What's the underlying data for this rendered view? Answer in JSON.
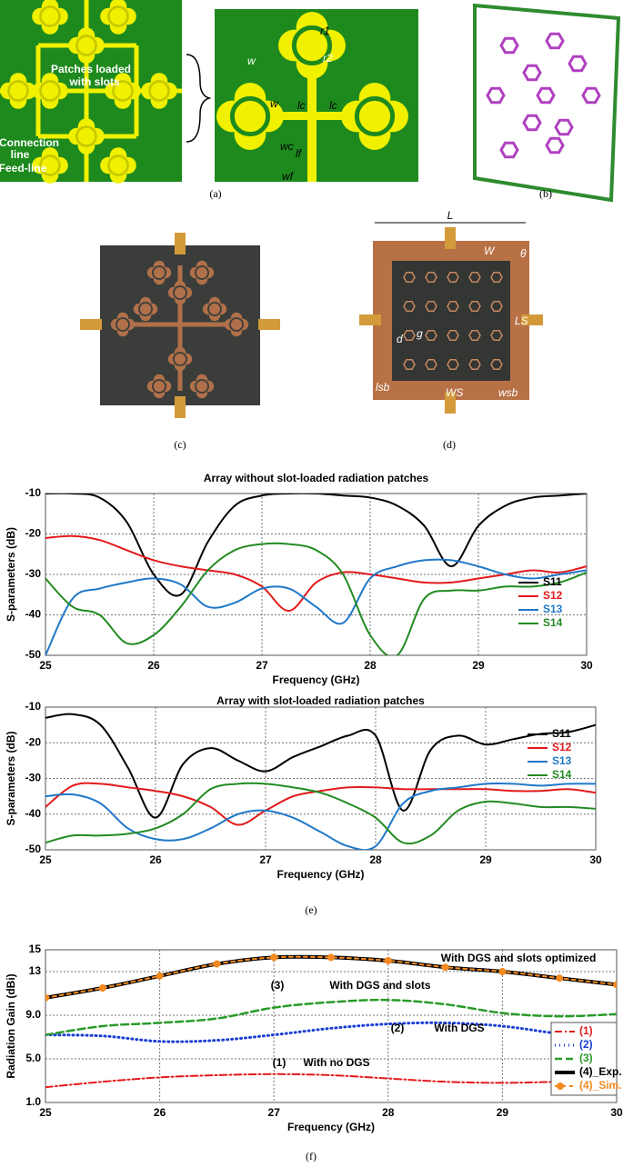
{
  "panel_labels": [
    "(a)",
    "(b)",
    "(c)",
    "(d)",
    "(e)",
    "(f)"
  ],
  "panel_a": {
    "patches": "Patches loaded",
    "slots": "with slots",
    "connection": "Connection",
    "line": "line",
    "feed": "Feed-line",
    "symbols": [
      "w",
      "w",
      "lc",
      "lc",
      "wc",
      "lf",
      "wf",
      "r1",
      "r2"
    ]
  },
  "panel_d": {
    "symbols": [
      "L",
      "W",
      "θ",
      "LS",
      "WS",
      "wsb",
      "lsb",
      "g",
      "d"
    ]
  },
  "chart_data": [
    {
      "type": "line",
      "title": "Array without slot-loaded radiation patches",
      "x_label": "Frequency (GHz)",
      "y_label": "S-parameters (dB)",
      "x": [
        25,
        25.25,
        25.5,
        25.75,
        26,
        26.25,
        26.5,
        26.75,
        27,
        27.25,
        27.5,
        27.75,
        28,
        28.25,
        28.5,
        28.75,
        29,
        29.25,
        29.5,
        29.75,
        30
      ],
      "xlim": [
        25,
        30
      ],
      "xticks": [
        25,
        26,
        27,
        28,
        29,
        30
      ],
      "ylim": [
        -50,
        -10
      ],
      "yticks": [
        -50,
        -40,
        -30,
        -20,
        -10
      ],
      "grid": true,
      "legend": "lower right",
      "series": [
        {
          "name": "S11",
          "color": "#000000",
          "style": "solid",
          "values": [
            -10,
            -10,
            -11,
            -17,
            -30,
            -35,
            -22,
            -13,
            -10.5,
            -10,
            -10,
            -10.5,
            -11,
            -13,
            -18,
            -28,
            -18,
            -13,
            -11,
            -10.5,
            -10
          ]
        },
        {
          "name": "S12",
          "color": "#e31a1c",
          "style": "solid",
          "values": [
            -21,
            -20.5,
            -21.5,
            -24,
            -26.5,
            -28,
            -29,
            -30,
            -33,
            -39,
            -32,
            -29.5,
            -30,
            -31,
            -32,
            -32,
            -31,
            -30,
            -29,
            -29.5,
            -28
          ]
        },
        {
          "name": "S13",
          "color": "#1f78c8",
          "style": "solid",
          "values": [
            -50,
            -36,
            -33.5,
            -32,
            -31,
            -32.5,
            -38,
            -37,
            -33.5,
            -33.5,
            -38,
            -42,
            -31,
            -28,
            -26.5,
            -26.5,
            -28,
            -30,
            -31,
            -30,
            -29
          ]
        },
        {
          "name": "S14",
          "color": "#238b23",
          "style": "solid",
          "values": [
            -31,
            -38,
            -40,
            -47,
            -45,
            -38,
            -29,
            -24,
            -22.5,
            -22.5,
            -24,
            -30,
            -45,
            -50,
            -36,
            -34,
            -34,
            -33,
            -33,
            -32,
            -29.5
          ]
        }
      ]
    },
    {
      "type": "line",
      "title": "Array with slot-loaded radiation patches",
      "x_label": "Frequency (GHz)",
      "y_label": "S-parameters (dB)",
      "x": [
        25,
        25.25,
        25.5,
        25.75,
        26,
        26.25,
        26.5,
        26.75,
        27,
        27.25,
        27.5,
        27.75,
        28,
        28.25,
        28.5,
        28.75,
        29,
        29.25,
        29.5,
        29.75,
        30
      ],
      "xlim": [
        25,
        30
      ],
      "xticks": [
        25,
        26,
        27,
        28,
        29,
        30
      ],
      "ylim": [
        -50,
        -10
      ],
      "yticks": [
        -50,
        -40,
        -30,
        -20,
        -10
      ],
      "grid": true,
      "legend": "upper right",
      "series": [
        {
          "name": "S11",
          "color": "#000000",
          "style": "solid",
          "values": [
            -13,
            -12,
            -15,
            -27,
            -41,
            -26,
            -21.5,
            -25,
            -28,
            -24,
            -21,
            -18,
            -18,
            -39,
            -22,
            -18,
            -20.5,
            -19,
            -17.5,
            -17,
            -15
          ]
        },
        {
          "name": "S12",
          "color": "#e31a1c",
          "style": "solid",
          "values": [
            -38,
            -32,
            -31.5,
            -32.5,
            -33.5,
            -35,
            -38,
            -43,
            -39,
            -35,
            -33.5,
            -32.5,
            -32.5,
            -33,
            -33,
            -33,
            -33,
            -33.5,
            -33.5,
            -33,
            -34
          ]
        },
        {
          "name": "S13",
          "color": "#1f78c8",
          "style": "solid",
          "values": [
            -35,
            -34.5,
            -37,
            -44,
            -47,
            -47,
            -44,
            -40,
            -39,
            -41,
            -45,
            -49,
            -49,
            -37,
            -33.5,
            -32.5,
            -31.5,
            -31.5,
            -32,
            -31.5,
            -31.5
          ]
        },
        {
          "name": "S14",
          "color": "#238b23",
          "style": "solid",
          "values": [
            -48,
            -46,
            -46,
            -45.5,
            -44,
            -40,
            -33,
            -31.5,
            -31.5,
            -32.5,
            -34,
            -37,
            -41,
            -48,
            -46,
            -39,
            -36.5,
            -37,
            -38,
            -38,
            -38.5
          ]
        }
      ]
    },
    {
      "type": "line",
      "x_label": "Frequency (GHz)",
      "y_label": "Radiation Gain (dBi)",
      "x": [
        25,
        25.5,
        26,
        26.5,
        27,
        27.5,
        28,
        28.5,
        29,
        29.5,
        30
      ],
      "xlim": [
        25,
        30
      ],
      "xticks": [
        25,
        26,
        27,
        28,
        29,
        30
      ],
      "ylim": [
        1,
        15
      ],
      "yticks": [
        {
          "value": 1,
          "label": "1.0"
        },
        {
          "value": 5,
          "label": "5.0"
        },
        {
          "value": 9,
          "label": "9.0"
        },
        13,
        15
      ],
      "grid": true,
      "legend": "lower right",
      "annotations": [
        "With DGS and slots optimized",
        "(3)",
        "With DGS and slots",
        "(2)",
        "With DGS",
        "(1)",
        "With no DGS"
      ],
      "series": [
        {
          "name": "(1)",
          "color": "#e31a1c",
          "style": "dashdot",
          "values": [
            2.4,
            2.9,
            3.3,
            3.5,
            3.6,
            3.5,
            3.2,
            2.9,
            2.8,
            2.9,
            3.0
          ]
        },
        {
          "name": "(2)",
          "color": "#1a3fd6",
          "style": "dotted",
          "values": [
            7.2,
            7.1,
            6.6,
            6.7,
            7.2,
            7.8,
            8.2,
            8.3,
            8.0,
            7.3,
            6.8
          ]
        },
        {
          "name": "(3)",
          "color": "#2a9a2a",
          "style": "dashed",
          "values": [
            7.2,
            8.0,
            8.3,
            8.7,
            9.7,
            10.2,
            10.4,
            10.0,
            9.2,
            8.9,
            9.1
          ]
        },
        {
          "name": "(4)_Exp.",
          "color": "#000000",
          "style": "thick",
          "values": [
            10.6,
            11.5,
            12.6,
            13.7,
            14.3,
            14.3,
            14.0,
            13.4,
            13.0,
            12.4,
            11.8
          ]
        },
        {
          "name": "(4)_Sim.",
          "color": "#f58a1f",
          "style": "markers",
          "values": [
            10.6,
            11.5,
            12.6,
            13.7,
            14.3,
            14.3,
            14.0,
            13.4,
            13.0,
            12.4,
            11.8
          ]
        }
      ]
    }
  ]
}
